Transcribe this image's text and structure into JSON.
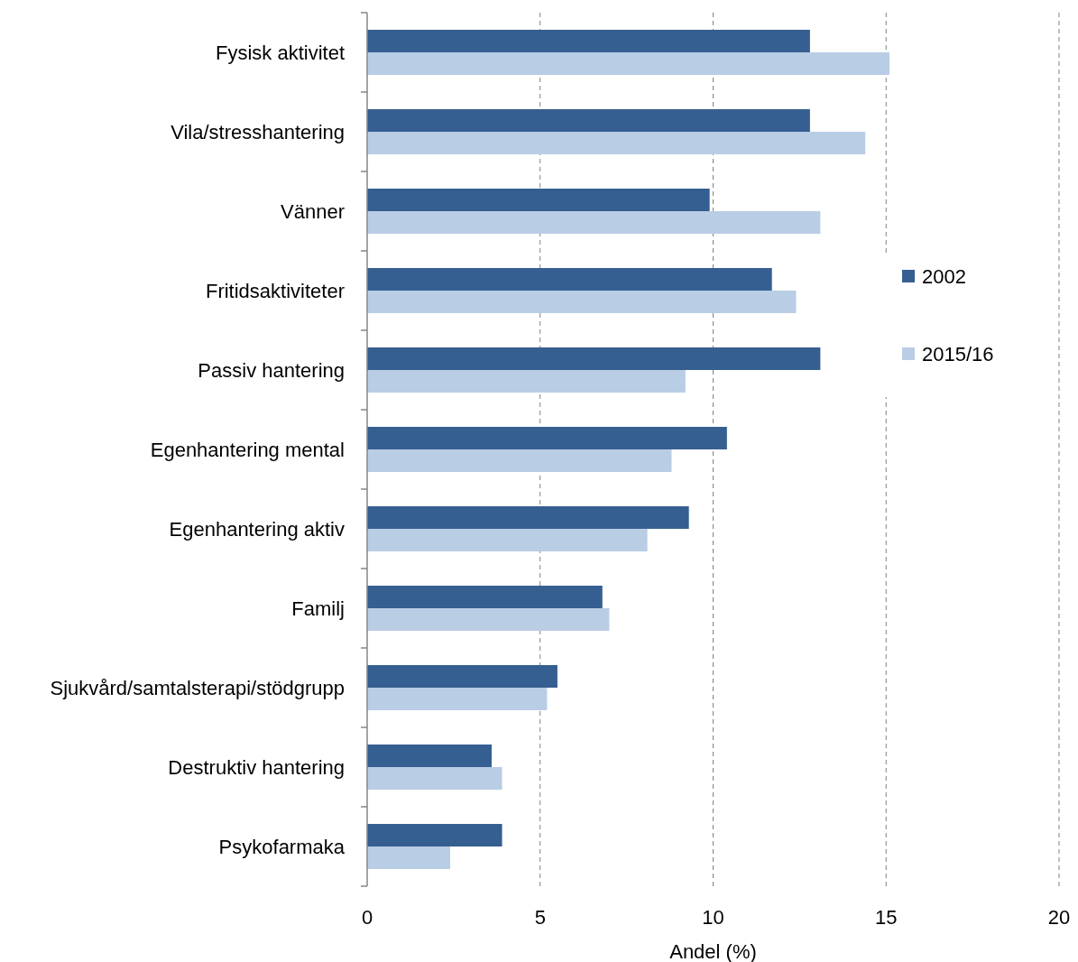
{
  "chart_data": {
    "type": "bar",
    "orientation": "horizontal",
    "xlabel": "Andel (%)",
    "categories": [
      "Fysisk aktivitet",
      "Vila/stresshantering",
      "Vänner",
      "Fritidsaktiviteter",
      "Passiv hantering",
      "Egenhantering mental",
      "Egenhantering aktiv",
      "Familj",
      "Sjukvård/samtalsterapi/stödgrupp",
      "Destruktiv hantering",
      "Psykofarmaka"
    ],
    "series": [
      {
        "name": "2002",
        "color": "#365f91",
        "values": [
          12.8,
          12.8,
          9.9,
          11.7,
          13.1,
          10.4,
          9.3,
          6.8,
          5.5,
          3.6,
          3.9
        ]
      },
      {
        "name": "2015/16",
        "color": "#b9cde5",
        "values": [
          15.1,
          14.4,
          13.1,
          12.4,
          9.2,
          8.8,
          8.1,
          7.0,
          5.2,
          3.9,
          2.4
        ]
      }
    ],
    "xlim": [
      0,
      20
    ],
    "xticks": [
      0,
      5,
      10,
      15,
      20
    ],
    "grid": "x",
    "legend": "right"
  }
}
